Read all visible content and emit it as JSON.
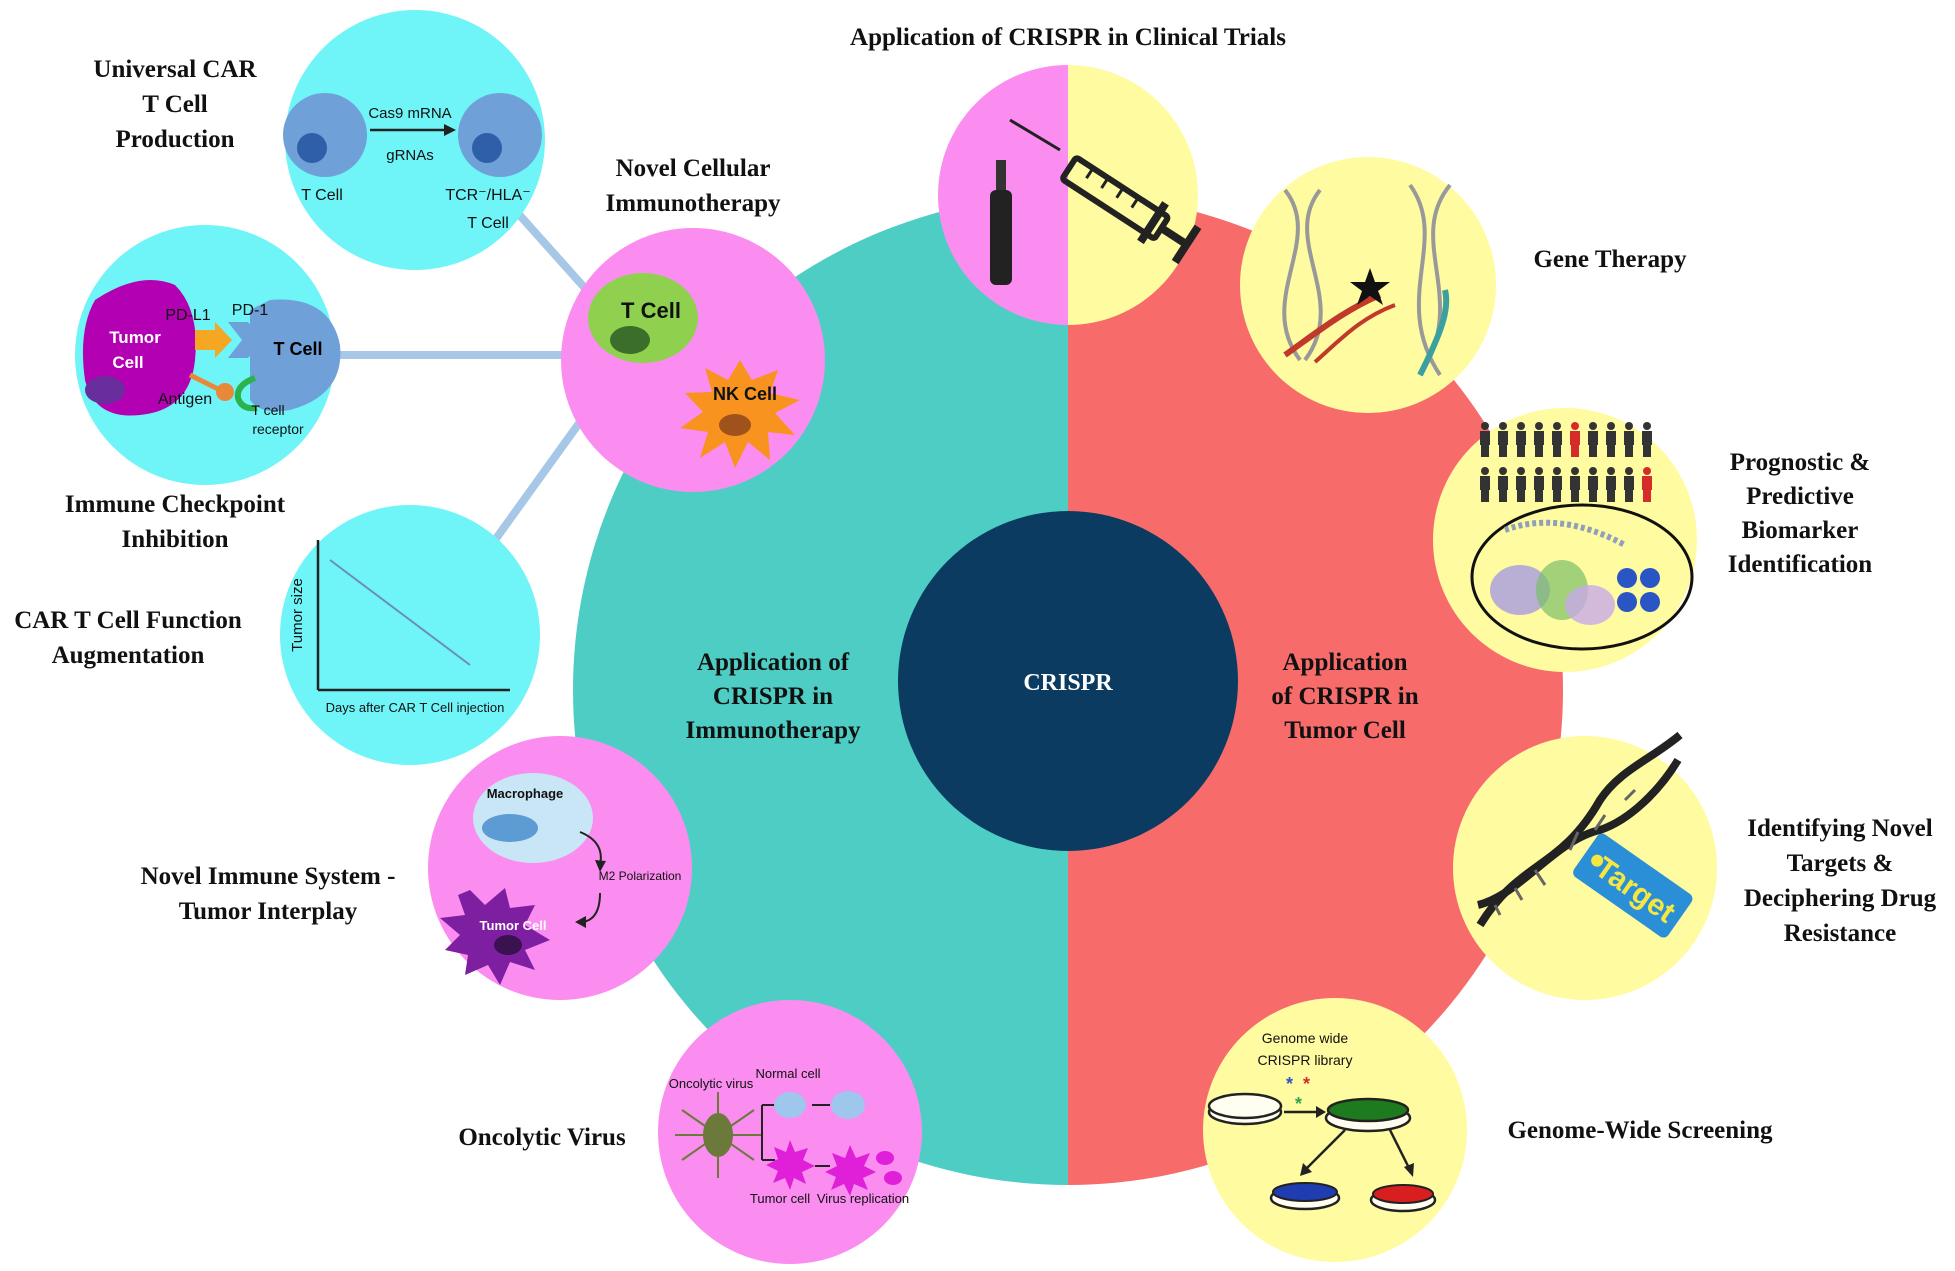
{
  "center": {
    "label": "CRISPR"
  },
  "halves": {
    "immunotherapy": [
      "Application of",
      "CRISPR in",
      "Immunotherapy"
    ],
    "tumor": [
      "Application",
      "of CRISPR in",
      "Tumor Cell"
    ]
  },
  "clinical": {
    "title": "Application of CRISPR in Clinical Trials"
  },
  "immuno_items": {
    "universal_car": {
      "title": [
        "Universal CAR",
        "T Cell",
        "Production"
      ],
      "cas9": "Cas9 mRNA",
      "grnas": "gRNAs",
      "tcell": "T Cell",
      "tcr": "TCR⁻/HLA⁻",
      "tcell2": "T Cell"
    },
    "checkpoint": {
      "title": [
        "Immune Checkpoint",
        "Inhibition"
      ],
      "tumor": "Tumor",
      "cell": "Cell",
      "pdl1": "PD-L1",
      "pd1": "PD-1",
      "tcell": "T Cell",
      "antigen": "Antigen",
      "tcr1": "T cell",
      "tcr2": "receptor"
    },
    "car_function": {
      "title": [
        "CAR T Cell Function",
        "Augmentation"
      ],
      "ylabel": "Tumor size",
      "xlabel": "Days after CAR T Cell injection"
    },
    "novel_cellular": {
      "title": [
        "Novel Cellular",
        "Immunotherapy"
      ],
      "tcell": "T Cell",
      "nkcell": "NK Cell"
    },
    "interplay": {
      "title": [
        "Novel Immune System -",
        "Tumor Interplay"
      ],
      "macrophage": "Macrophage",
      "m2": "M2 Polarization",
      "tumor": "Tumor Cell"
    },
    "oncolytic": {
      "title": "Oncolytic Virus",
      "virus": "Oncolytic virus",
      "normal": "Normal cell",
      "tumor": "Tumor cell",
      "replication": "Virus replication"
    }
  },
  "tumor_items": {
    "gene_therapy": {
      "title": "Gene Therapy"
    },
    "biomarker": {
      "title": [
        "Prognostic &",
        "Predictive",
        "Biomarker",
        "Identification"
      ]
    },
    "targets": {
      "title": [
        "Identifying Novel",
        "Targets &",
        "Deciphering Drug",
        "Resistance"
      ],
      "tag": "Target"
    },
    "screening": {
      "title": "Genome-Wide Screening",
      "lib1": "Genome wide",
      "lib2": "CRISPR library"
    }
  },
  "colors": {
    "teal": "#4ecdc4",
    "coral": "#f76b6b",
    "navy": "#0b3b60",
    "cyan": "#6ff4f8",
    "pink": "#fb8df0",
    "yellow": "#fffba0"
  }
}
